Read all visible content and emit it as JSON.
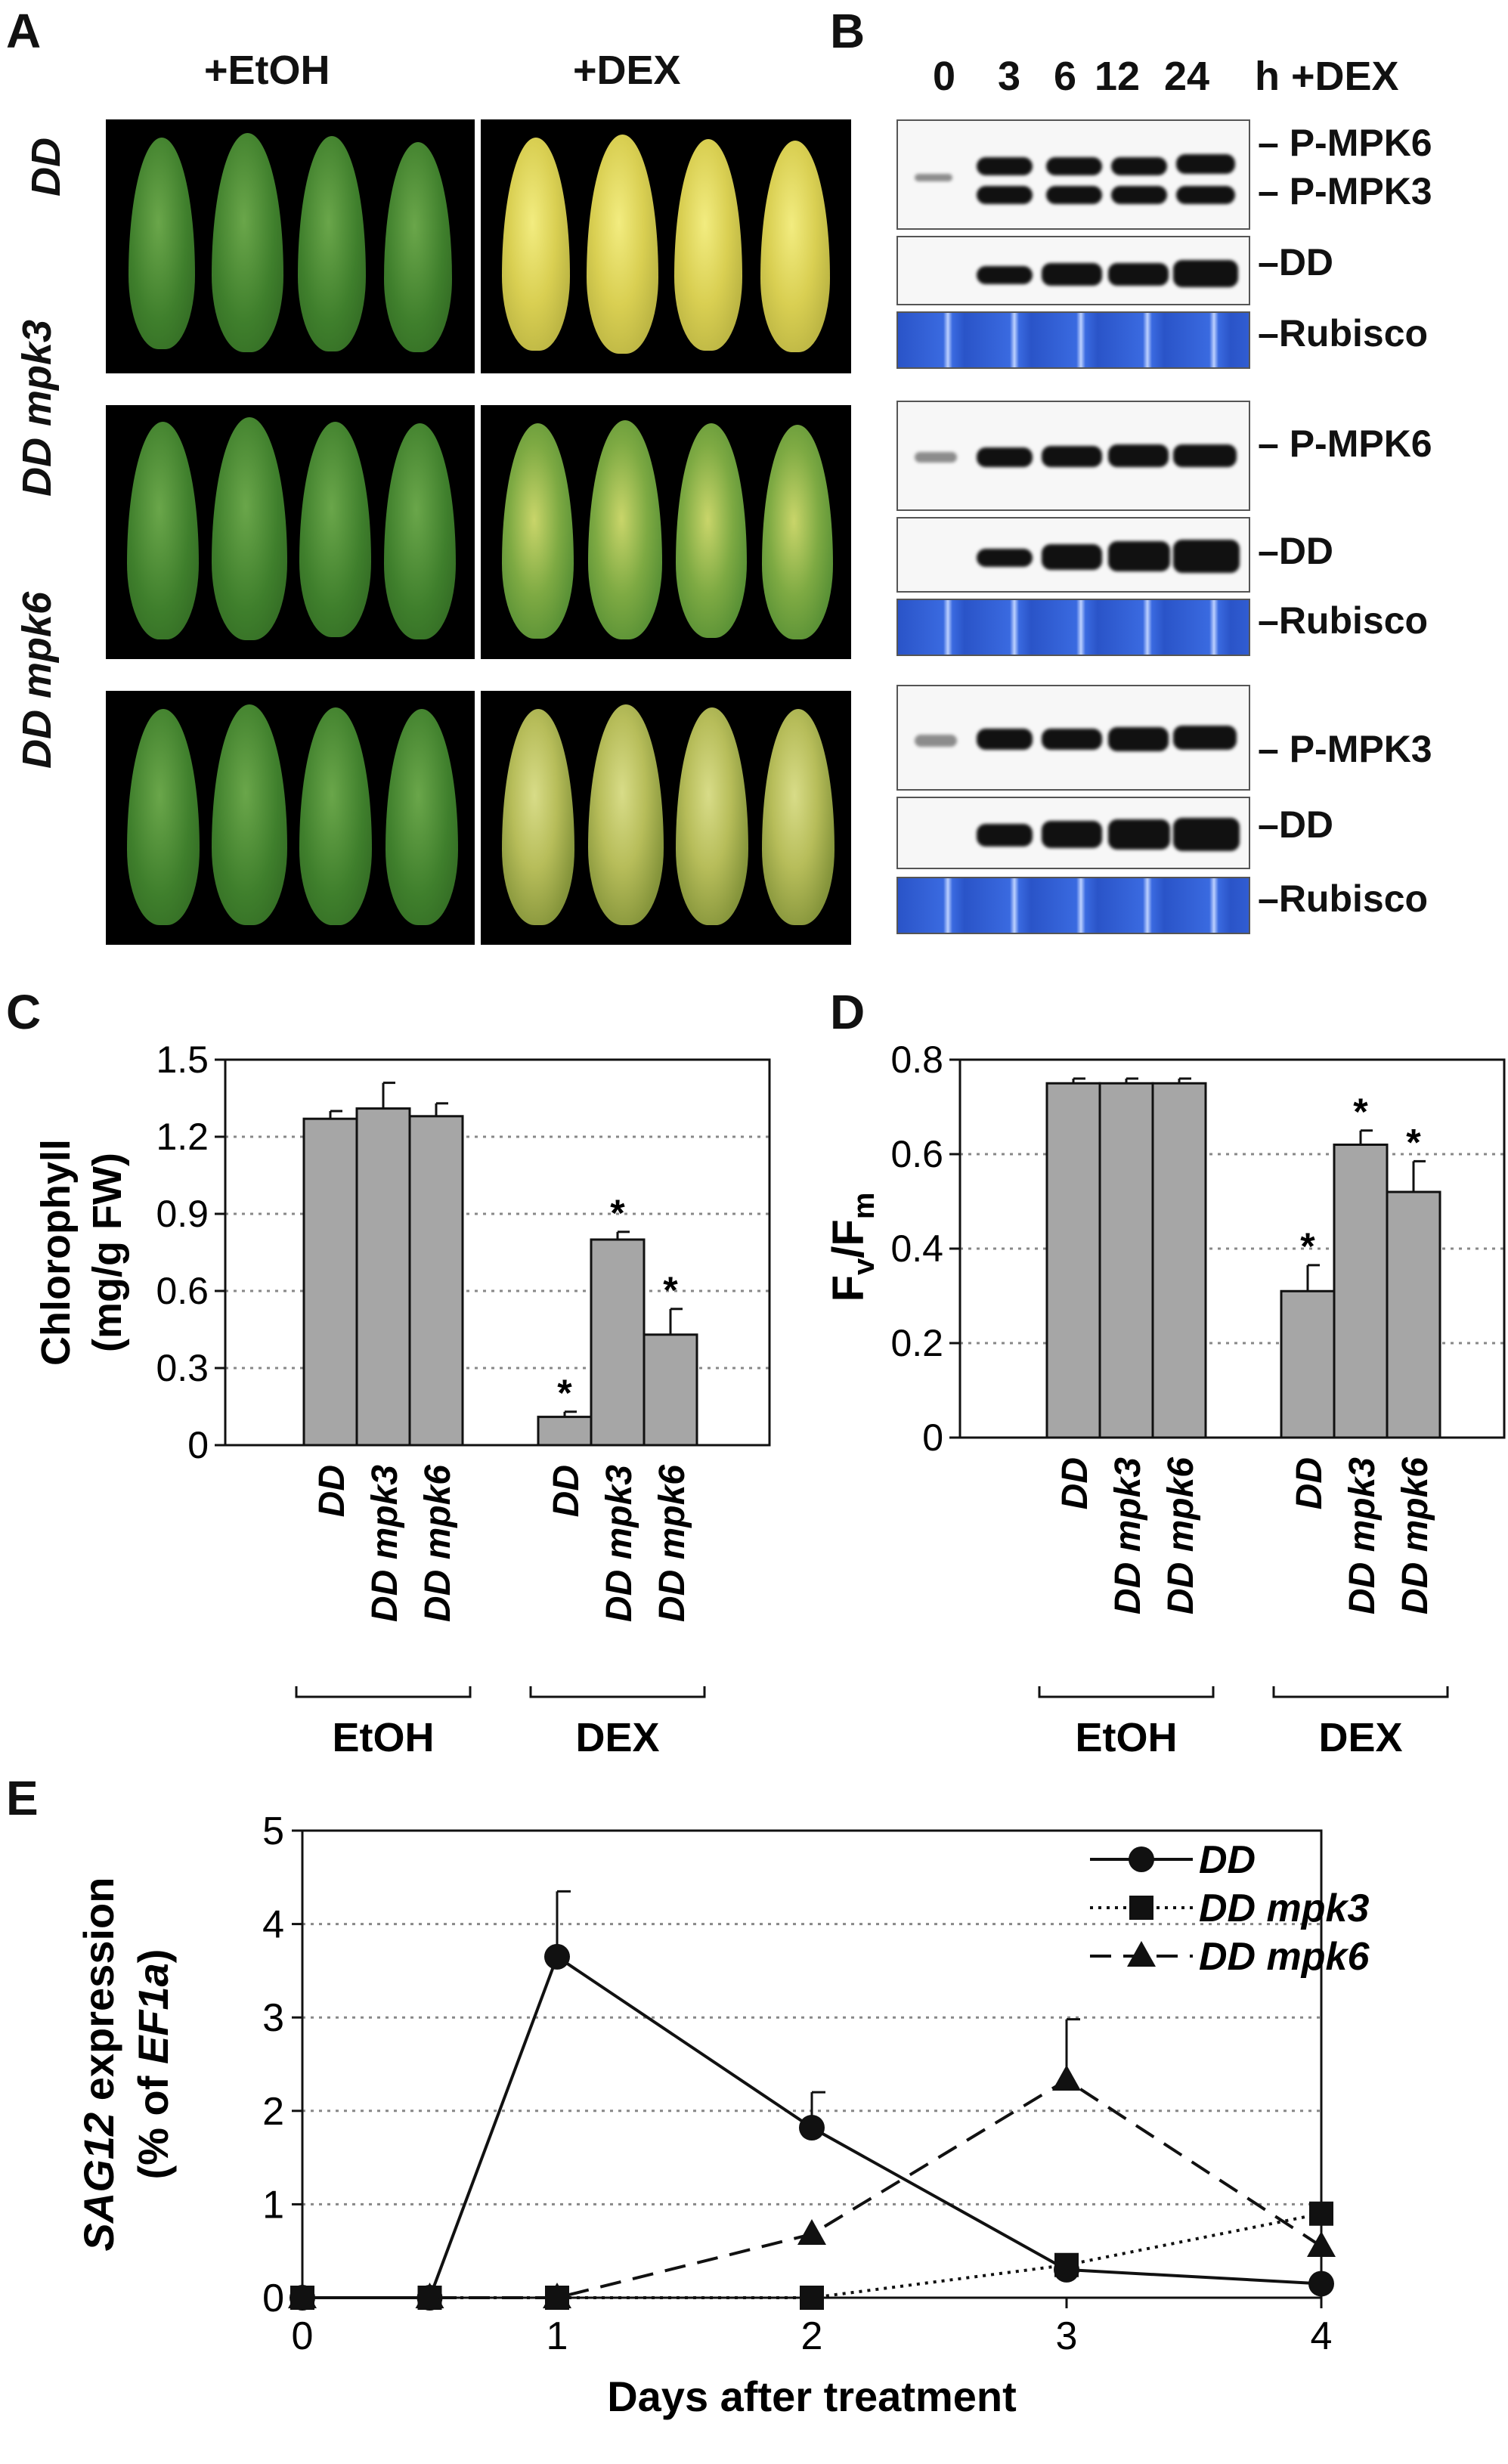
{
  "panels": {
    "a": {
      "letter": "A",
      "col_etoh": "+EtOH",
      "col_dex": "+DEX",
      "rows": [
        "DD",
        "DD mpk3",
        "DD mpk6"
      ]
    },
    "b": {
      "letter": "B",
      "lanes": [
        "0",
        "3",
        "6",
        "12",
        "24"
      ],
      "lane_suffix": "h +DEX",
      "blot_labels": [
        "P-MPK6",
        "P-MPK3",
        "DD",
        "Rubisco",
        "P-MPK6",
        "DD",
        "Rubisco",
        "P-MPK3",
        "DD",
        "Rubisco"
      ]
    },
    "c": {
      "letter": "C"
    },
    "d": {
      "letter": "D"
    },
    "e": {
      "letter": "E"
    }
  },
  "chart_data": [
    {
      "panel": "C",
      "type": "bar",
      "ylabel": "Chlorophyll (mg/g FW)",
      "ylim": [
        0,
        1.5
      ],
      "yticks": [
        "0",
        "0.3",
        "0.6",
        "0.9",
        "1.2",
        "1.5"
      ],
      "groups": [
        "EtOH",
        "DEX"
      ],
      "categories": [
        "DD",
        "DD mpk3",
        "DD mpk6",
        "DD",
        "DD mpk3",
        "DD mpk6"
      ],
      "values": [
        1.27,
        1.31,
        1.28,
        0.11,
        0.8,
        0.43
      ],
      "errors": [
        0.03,
        0.1,
        0.05,
        0.02,
        0.03,
        0.1
      ],
      "significance": [
        "",
        "",
        "",
        "*",
        "*",
        "*"
      ],
      "grid": true
    },
    {
      "panel": "D",
      "type": "bar",
      "ylabel": "Fv/Fm",
      "ylim": [
        0,
        0.8
      ],
      "yticks": [
        "0",
        "0.2",
        "0.4",
        "0.6",
        "0.8"
      ],
      "groups": [
        "EtOH",
        "DEX"
      ],
      "categories": [
        "DD",
        "DD mpk3",
        "DD mpk6",
        "DD",
        "DD mpk3",
        "DD mpk6"
      ],
      "values": [
        0.75,
        0.75,
        0.75,
        0.31,
        0.62,
        0.52
      ],
      "errors": [
        0.01,
        0.01,
        0.01,
        0.055,
        0.03,
        0.065
      ],
      "significance": [
        "",
        "",
        "",
        "*",
        "*",
        "*"
      ],
      "grid": true
    },
    {
      "panel": "E",
      "type": "line",
      "ylabel": "SAG12 expression (% of EF1a)",
      "xlabel": "Days after treatment",
      "xlim": [
        0,
        4
      ],
      "ylim": [
        0,
        5
      ],
      "xticks": [
        "0",
        "1",
        "2",
        "3",
        "4"
      ],
      "yticks": [
        "0",
        "1",
        "2",
        "3",
        "4",
        "5"
      ],
      "legend_position": "top-right",
      "grid": true,
      "series": [
        {
          "name": "DD",
          "style": "solid",
          "marker": "circle",
          "x": [
            0,
            0.5,
            1,
            2,
            3,
            4
          ],
          "y": [
            0,
            0,
            3.65,
            1.82,
            0.3,
            0.15
          ],
          "errors": [
            0,
            0,
            0.7,
            0.38,
            0,
            0
          ]
        },
        {
          "name": "DD mpk3",
          "style": "dotted",
          "marker": "square",
          "x": [
            0,
            0.5,
            1,
            2,
            3,
            4
          ],
          "y": [
            0,
            0,
            0,
            0,
            0.35,
            0.9
          ],
          "errors": [
            0,
            0,
            0,
            0,
            0,
            0
          ]
        },
        {
          "name": "DD mpk6",
          "style": "dashed",
          "marker": "triangle",
          "x": [
            0,
            0.5,
            1,
            2,
            3,
            4
          ],
          "y": [
            0,
            0,
            0,
            0.68,
            2.33,
            0.55
          ],
          "errors": [
            0,
            0,
            0,
            0,
            0.65,
            0
          ]
        }
      ]
    }
  ]
}
